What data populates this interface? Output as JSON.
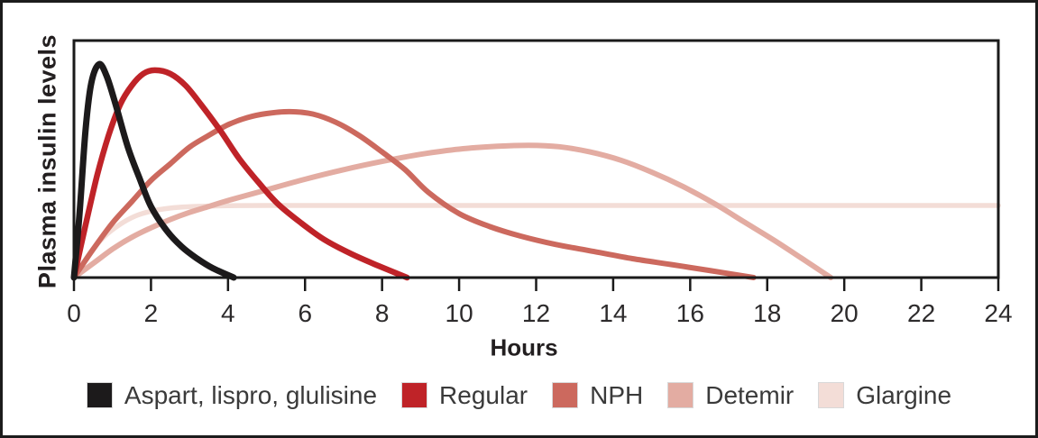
{
  "figure": {
    "ylabel": "Plasma insulin levels",
    "xlabel": "Hours"
  },
  "colors": {
    "frame": "#1c1c1c",
    "axis": "#1a1a1a",
    "tick_text": "#2d2b2c",
    "legend_text": "#3a3a3a"
  },
  "chart_data": {
    "type": "line",
    "title": "",
    "xlabel": "Hours",
    "ylabel": "Plasma insulin levels",
    "xlim": [
      0,
      24
    ],
    "ylim": [
      0,
      1
    ],
    "x_ticks": [
      0,
      2,
      4,
      6,
      8,
      10,
      12,
      14,
      16,
      18,
      20,
      22,
      24
    ],
    "y_ticks": [],
    "grid": false,
    "legend_position": "bottom",
    "series": [
      {
        "key": "aspart-lispro-glulisine",
        "name": "Aspart, lispro, glulisine",
        "color": "#1c1a1b",
        "line_width": 7,
        "points": [
          [
            0,
            0
          ],
          [
            0.15,
            0.28
          ],
          [
            0.3,
            0.62
          ],
          [
            0.45,
            0.82
          ],
          [
            0.65,
            0.9
          ],
          [
            0.85,
            0.85
          ],
          [
            1.1,
            0.72
          ],
          [
            1.4,
            0.55
          ],
          [
            1.7,
            0.42
          ],
          [
            2.0,
            0.3
          ],
          [
            2.4,
            0.2
          ],
          [
            2.8,
            0.13
          ],
          [
            3.2,
            0.08
          ],
          [
            3.6,
            0.04
          ],
          [
            4.15,
            0
          ]
        ]
      },
      {
        "key": "regular",
        "name": "Regular",
        "color": "#bf2328",
        "line_width": 6.5,
        "points": [
          [
            0,
            0
          ],
          [
            0.3,
            0.22
          ],
          [
            0.6,
            0.43
          ],
          [
            0.9,
            0.6
          ],
          [
            1.2,
            0.73
          ],
          [
            1.5,
            0.81
          ],
          [
            1.8,
            0.86
          ],
          [
            2.1,
            0.875
          ],
          [
            2.5,
            0.86
          ],
          [
            2.9,
            0.81
          ],
          [
            3.3,
            0.73
          ],
          [
            3.8,
            0.62
          ],
          [
            4.3,
            0.5
          ],
          [
            4.8,
            0.4
          ],
          [
            5.3,
            0.31
          ],
          [
            5.9,
            0.23
          ],
          [
            6.5,
            0.16
          ],
          [
            7.2,
            0.1
          ],
          [
            7.9,
            0.05
          ],
          [
            8.65,
            0
          ]
        ]
      },
      {
        "key": "nph",
        "name": "NPH",
        "color": "#cc695e",
        "line_width": 6,
        "points": [
          [
            0,
            0
          ],
          [
            0.5,
            0.12
          ],
          [
            1,
            0.23
          ],
          [
            1.5,
            0.32
          ],
          [
            2,
            0.41
          ],
          [
            2.5,
            0.48
          ],
          [
            3,
            0.55
          ],
          [
            3.5,
            0.6
          ],
          [
            4,
            0.645
          ],
          [
            4.5,
            0.675
          ],
          [
            5,
            0.692
          ],
          [
            5.6,
            0.7
          ],
          [
            6.2,
            0.69
          ],
          [
            6.8,
            0.655
          ],
          [
            7.4,
            0.6
          ],
          [
            8,
            0.53
          ],
          [
            8.6,
            0.455
          ],
          [
            9.2,
            0.36
          ],
          [
            10,
            0.27
          ],
          [
            10.8,
            0.215
          ],
          [
            11.6,
            0.175
          ],
          [
            12.5,
            0.14
          ],
          [
            13.5,
            0.11
          ],
          [
            14.5,
            0.08
          ],
          [
            15.5,
            0.055
          ],
          [
            16.5,
            0.03
          ],
          [
            17.65,
            0
          ]
        ]
      },
      {
        "key": "detemir",
        "name": "Detemir",
        "color": "#e3aca2",
        "line_width": 6,
        "points": [
          [
            0,
            0
          ],
          [
            0.5,
            0.06
          ],
          [
            1,
            0.12
          ],
          [
            1.5,
            0.17
          ],
          [
            2,
            0.21
          ],
          [
            2.5,
            0.245
          ],
          [
            3,
            0.275
          ],
          [
            3.5,
            0.3
          ],
          [
            4,
            0.325
          ],
          [
            5,
            0.37
          ],
          [
            6,
            0.415
          ],
          [
            7,
            0.455
          ],
          [
            8,
            0.49
          ],
          [
            9,
            0.52
          ],
          [
            10,
            0.542
          ],
          [
            11,
            0.554
          ],
          [
            11.8,
            0.558
          ],
          [
            12.6,
            0.552
          ],
          [
            13.4,
            0.53
          ],
          [
            14.2,
            0.495
          ],
          [
            15,
            0.445
          ],
          [
            15.8,
            0.385
          ],
          [
            16.6,
            0.315
          ],
          [
            17.4,
            0.235
          ],
          [
            18.2,
            0.155
          ],
          [
            19,
            0.07
          ],
          [
            19.65,
            0
          ]
        ]
      },
      {
        "key": "glargine",
        "name": "Glargine",
        "color": "#f3ddd7",
        "line_width": 5.5,
        "points": [
          [
            0,
            0
          ],
          [
            0.4,
            0.1
          ],
          [
            0.8,
            0.175
          ],
          [
            1.2,
            0.225
          ],
          [
            1.6,
            0.26
          ],
          [
            2.0,
            0.28
          ],
          [
            2.5,
            0.293
          ],
          [
            3,
            0.299
          ],
          [
            4,
            0.303
          ],
          [
            5,
            0.304
          ],
          [
            8,
            0.304
          ],
          [
            12,
            0.304
          ],
          [
            16,
            0.304
          ],
          [
            20,
            0.304
          ],
          [
            24,
            0.304
          ]
        ]
      }
    ]
  }
}
